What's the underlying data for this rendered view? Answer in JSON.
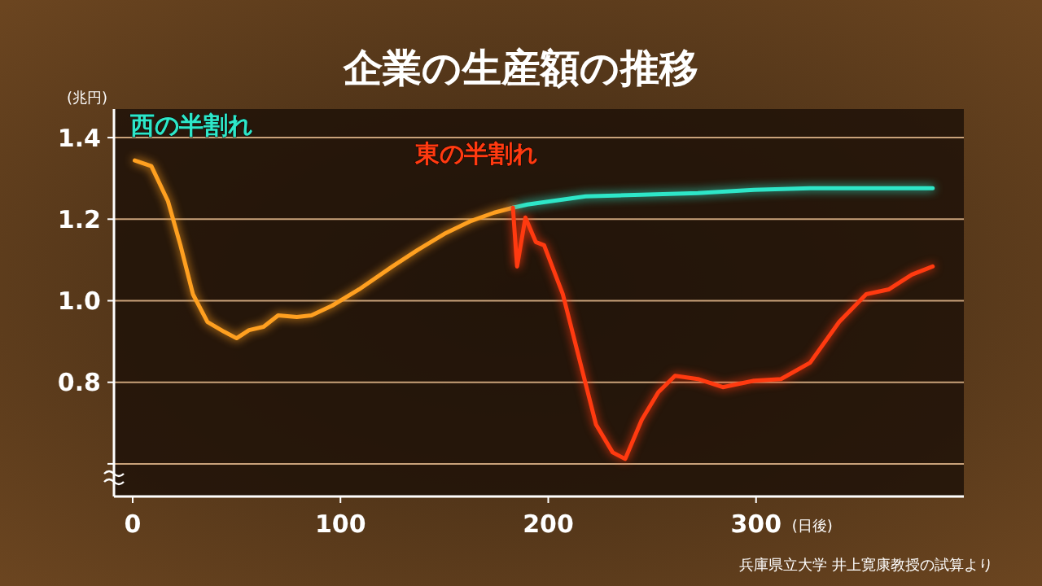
{
  "chart_data": {
    "type": "line",
    "title": "企業の生産額の推移",
    "ylabel": "(兆円)",
    "xlabel": "(日後)",
    "annotations": [
      "兵庫県立大学 井上寛康教授の試算より"
    ],
    "xlim": [
      -9,
      400
    ],
    "ylim": [
      0.52,
      1.47
    ],
    "xticks": [
      0,
      100,
      200,
      300
    ],
    "yticks": [
      {
        "value": 0.6,
        "label": null
      },
      0.8,
      {
        "value": 1.0,
        "label": "1.0"
      },
      1.2,
      1.4
    ],
    "grid": "y",
    "series": [
      {
        "color": "#ffa020",
        "x": [
          1,
          9,
          17,
          23,
          29,
          36,
          44,
          50,
          56,
          63,
          70,
          79,
          86,
          96,
          109,
          125,
          137,
          150,
          163,
          174,
          183
        ],
        "values": [
          1.344,
          1.33,
          1.244,
          1.136,
          1.016,
          0.948,
          0.924,
          0.908,
          0.928,
          0.936,
          0.964,
          0.96,
          0.964,
          0.988,
          1.028,
          1.084,
          1.124,
          1.164,
          1.196,
          1.216,
          1.228
        ]
      },
      {
        "name": "西の半割れ",
        "color": "#2ee6c8",
        "x": [
          183,
          190,
          218,
          245,
          272,
          299,
          326,
          353,
          385
        ],
        "values": [
          1.228,
          1.236,
          1.256,
          1.26,
          1.264,
          1.272,
          1.276,
          1.276,
          1.276
        ]
      },
      {
        "name": "東の半割れ",
        "color": "#ff3a10",
        "x": [
          183,
          185,
          189,
          194,
          198,
          207,
          215,
          223,
          231,
          237,
          245,
          253,
          261,
          272,
          284,
          299,
          312,
          326,
          340,
          353,
          364,
          375,
          385
        ],
        "values": [
          1.228,
          1.084,
          1.204,
          1.144,
          1.136,
          1.016,
          0.856,
          0.696,
          0.628,
          0.612,
          0.708,
          0.776,
          0.816,
          0.808,
          0.788,
          0.804,
          0.808,
          0.848,
          0.948,
          1.016,
          1.028,
          1.064,
          1.084
        ]
      }
    ]
  }
}
